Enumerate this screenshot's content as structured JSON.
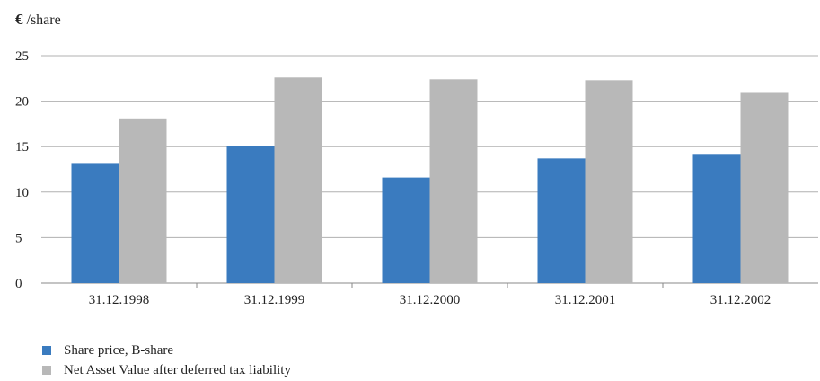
{
  "unit_label": {
    "symbol": "€",
    "text": "/share"
  },
  "chart_data": {
    "type": "bar",
    "title": "",
    "xlabel": "",
    "ylabel": "€ /share",
    "categories": [
      "31.12.1998",
      "31.12.1999",
      "31.12.2000",
      "31.12.2001",
      "31.12.2002"
    ],
    "series": [
      {
        "name": "Share price, B-share",
        "color": "#3a7bbf",
        "values": [
          13.2,
          15.1,
          11.6,
          13.7,
          14.2
        ]
      },
      {
        "name": "Net Asset Value after deferred tax liability",
        "color": "#b8b8b8",
        "values": [
          18.1,
          22.6,
          22.4,
          22.3,
          21.0
        ]
      }
    ],
    "ylim": [
      0,
      25
    ],
    "yticks": [
      "0",
      "5",
      "10",
      "15",
      "20",
      "25"
    ],
    "grid": true,
    "legend_position": "bottom-left"
  },
  "colors": {
    "grid": "#b0b0b0",
    "axis": "#888888"
  }
}
